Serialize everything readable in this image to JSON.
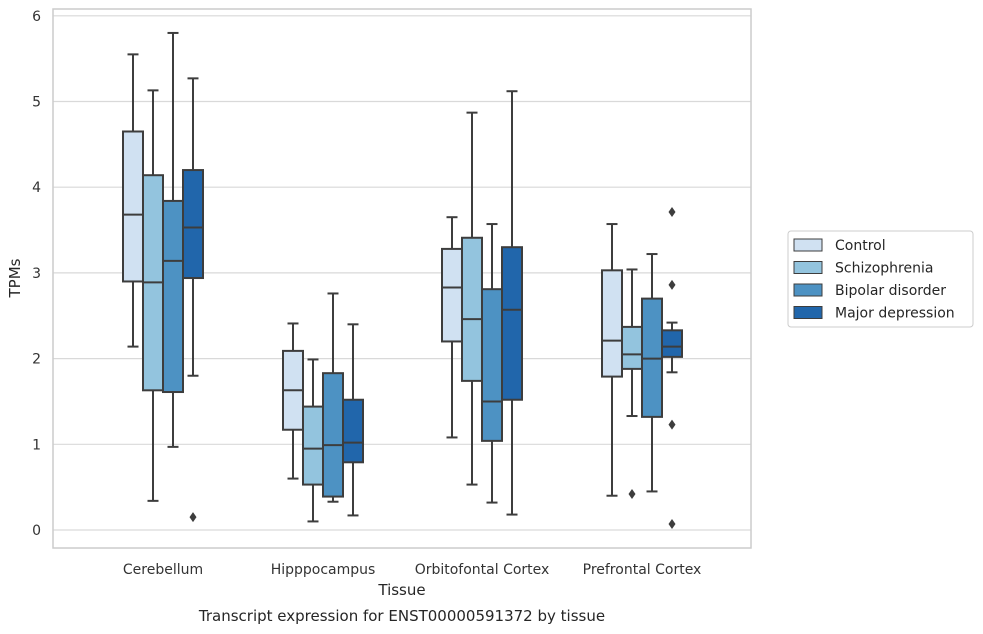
{
  "chart_data": {
    "type": "box",
    "xlabel": "Tissue",
    "ylabel": "TPMs",
    "caption": "Transcript expression for ENST00000591372 by tissue",
    "ylim": [
      -0.2,
      6.1
    ],
    "yticks": [
      0,
      1,
      2,
      3,
      4,
      5,
      6
    ],
    "grid": "horizontal",
    "legend_position": "right",
    "categories": [
      "Cerebellum",
      "Hipppocampus",
      "Orbitofontal Cortex",
      "Prefrontal Cortex"
    ],
    "series": [
      {
        "name": "Control",
        "color": "#d0e1f2",
        "boxes": [
          {
            "whislo": 2.14,
            "q1": 2.9,
            "med": 3.68,
            "q3": 4.65,
            "whishi": 5.55,
            "fliers": []
          },
          {
            "whislo": 0.6,
            "q1": 1.17,
            "med": 1.63,
            "q3": 2.09,
            "whishi": 2.41,
            "fliers": []
          },
          {
            "whislo": 1.08,
            "q1": 2.2,
            "med": 2.83,
            "q3": 3.28,
            "whishi": 3.65,
            "fliers": []
          },
          {
            "whislo": 0.4,
            "q1": 1.79,
            "med": 2.21,
            "q3": 3.03,
            "whishi": 3.57,
            "fliers": []
          }
        ]
      },
      {
        "name": "Schizophrenia",
        "color": "#93c4de",
        "boxes": [
          {
            "whislo": 0.34,
            "q1": 1.63,
            "med": 2.89,
            "q3": 4.14,
            "whishi": 5.13,
            "fliers": []
          },
          {
            "whislo": 0.1,
            "q1": 0.53,
            "med": 0.95,
            "q3": 1.44,
            "whishi": 1.99,
            "fliers": []
          },
          {
            "whislo": 0.53,
            "q1": 1.74,
            "med": 2.46,
            "q3": 3.41,
            "whishi": 4.87,
            "fliers": []
          },
          {
            "whislo": 1.33,
            "q1": 1.88,
            "med": 2.05,
            "q3": 2.37,
            "whishi": 3.04,
            "fliers": [
              0.42
            ]
          }
        ]
      },
      {
        "name": "Bipolar disorder",
        "color": "#4d92c3",
        "boxes": [
          {
            "whislo": 0.97,
            "q1": 1.61,
            "med": 3.14,
            "q3": 3.84,
            "whishi": 5.8,
            "fliers": []
          },
          {
            "whislo": 0.33,
            "q1": 0.39,
            "med": 0.99,
            "q3": 1.83,
            "whishi": 2.76,
            "fliers": []
          },
          {
            "whislo": 0.32,
            "q1": 1.04,
            "med": 1.5,
            "q3": 2.81,
            "whishi": 3.57,
            "fliers": []
          },
          {
            "whislo": 0.45,
            "q1": 1.32,
            "med": 2.0,
            "q3": 2.7,
            "whishi": 3.22,
            "fliers": []
          }
        ]
      },
      {
        "name": "Major depression",
        "color": "#2166ab",
        "boxes": [
          {
            "whislo": 1.8,
            "q1": 2.94,
            "med": 3.53,
            "q3": 4.2,
            "whishi": 5.27,
            "fliers": [
              0.15
            ]
          },
          {
            "whislo": 0.17,
            "q1": 0.79,
            "med": 1.02,
            "q3": 1.52,
            "whishi": 2.4,
            "fliers": []
          },
          {
            "whislo": 0.18,
            "q1": 1.52,
            "med": 2.57,
            "q3": 3.3,
            "whishi": 5.12,
            "fliers": []
          },
          {
            "whislo": 1.84,
            "q1": 2.02,
            "med": 2.14,
            "q3": 2.33,
            "whishi": 2.42,
            "fliers": [
              3.71,
              2.86,
              1.23,
              0.07
            ]
          }
        ]
      }
    ]
  }
}
